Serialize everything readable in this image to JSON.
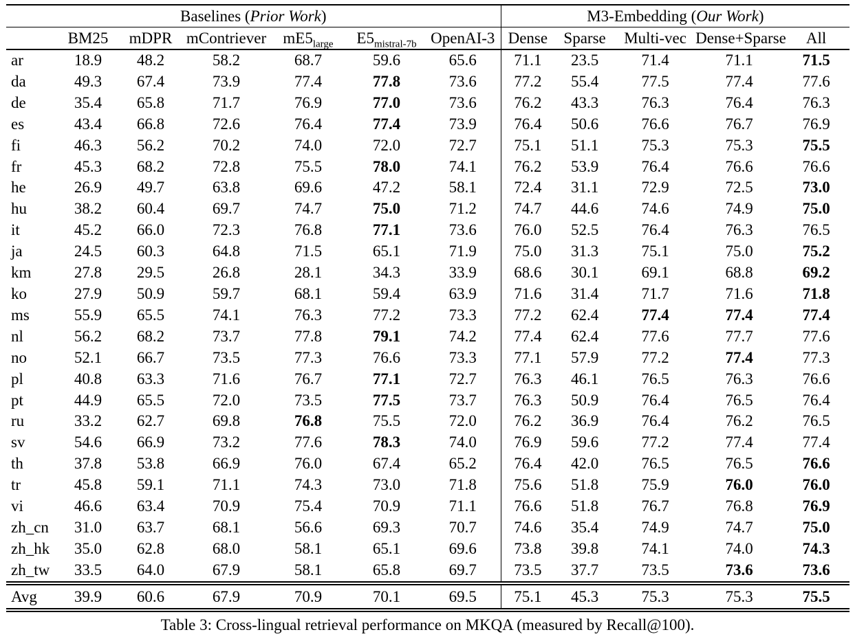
{
  "table": {
    "groups": [
      {
        "prefix": "Baselines (",
        "italic": "Prior Work",
        "suffix": ")"
      },
      {
        "prefix": "M3-Embedding (",
        "italic": "Our Work",
        "suffix": ")"
      }
    ],
    "baseline_columns": [
      {
        "base": "BM25"
      },
      {
        "base": "mDPR"
      },
      {
        "base": "mContriever"
      },
      {
        "base": "mE5",
        "sub": "large"
      },
      {
        "base": "E5",
        "sub": "mistral-7b"
      },
      {
        "base": "OpenAI-3"
      }
    ],
    "m3_columns": [
      {
        "base": "Dense"
      },
      {
        "base": "Sparse"
      },
      {
        "base": "Multi-vec"
      },
      {
        "base": "Dense+Sparse"
      },
      {
        "base": "All"
      }
    ],
    "rows": [
      {
        "lang": "ar",
        "baseline": [
          "18.9",
          "48.2",
          "58.2",
          "68.7",
          "59.6",
          "65.6"
        ],
        "baseline_bold": [],
        "m3": [
          "71.1",
          "23.5",
          "71.4",
          "71.1",
          "71.5"
        ],
        "m3_bold": [
          4
        ]
      },
      {
        "lang": "da",
        "baseline": [
          "49.3",
          "67.4",
          "73.9",
          "77.4",
          "77.8",
          "73.6"
        ],
        "baseline_bold": [
          4
        ],
        "m3": [
          "77.2",
          "55.4",
          "77.5",
          "77.4",
          "77.6"
        ],
        "m3_bold": []
      },
      {
        "lang": "de",
        "baseline": [
          "35.4",
          "65.8",
          "71.7",
          "76.9",
          "77.0",
          "73.6"
        ],
        "baseline_bold": [
          4
        ],
        "m3": [
          "76.2",
          "43.3",
          "76.3",
          "76.4",
          "76.3"
        ],
        "m3_bold": []
      },
      {
        "lang": "es",
        "baseline": [
          "43.4",
          "66.8",
          "72.6",
          "76.4",
          "77.4",
          "73.9"
        ],
        "baseline_bold": [
          4
        ],
        "m3": [
          "76.4",
          "50.6",
          "76.6",
          "76.7",
          "76.9"
        ],
        "m3_bold": []
      },
      {
        "lang": "fi",
        "baseline": [
          "46.3",
          "56.2",
          "70.2",
          "74.0",
          "72.0",
          "72.7"
        ],
        "baseline_bold": [],
        "m3": [
          "75.1",
          "51.1",
          "75.3",
          "75.3",
          "75.5"
        ],
        "m3_bold": [
          4
        ]
      },
      {
        "lang": "fr",
        "baseline": [
          "45.3",
          "68.2",
          "72.8",
          "75.5",
          "78.0",
          "74.1"
        ],
        "baseline_bold": [
          4
        ],
        "m3": [
          "76.2",
          "53.9",
          "76.4",
          "76.6",
          "76.6"
        ],
        "m3_bold": []
      },
      {
        "lang": "he",
        "baseline": [
          "26.9",
          "49.7",
          "63.8",
          "69.6",
          "47.2",
          "58.1"
        ],
        "baseline_bold": [],
        "m3": [
          "72.4",
          "31.1",
          "72.9",
          "72.5",
          "73.0"
        ],
        "m3_bold": [
          4
        ]
      },
      {
        "lang": "hu",
        "baseline": [
          "38.2",
          "60.4",
          "69.7",
          "74.7",
          "75.0",
          "71.2"
        ],
        "baseline_bold": [
          4
        ],
        "m3": [
          "74.7",
          "44.6",
          "74.6",
          "74.9",
          "75.0"
        ],
        "m3_bold": [
          4
        ]
      },
      {
        "lang": "it",
        "baseline": [
          "45.2",
          "66.0",
          "72.3",
          "76.8",
          "77.1",
          "73.6"
        ],
        "baseline_bold": [
          4
        ],
        "m3": [
          "76.0",
          "52.5",
          "76.4",
          "76.3",
          "76.5"
        ],
        "m3_bold": []
      },
      {
        "lang": "ja",
        "baseline": [
          "24.5",
          "60.3",
          "64.8",
          "71.5",
          "65.1",
          "71.9"
        ],
        "baseline_bold": [],
        "m3": [
          "75.0",
          "31.3",
          "75.1",
          "75.0",
          "75.2"
        ],
        "m3_bold": [
          4
        ]
      },
      {
        "lang": "km",
        "baseline": [
          "27.8",
          "29.5",
          "26.8",
          "28.1",
          "34.3",
          "33.9"
        ],
        "baseline_bold": [],
        "m3": [
          "68.6",
          "30.1",
          "69.1",
          "68.8",
          "69.2"
        ],
        "m3_bold": [
          4
        ]
      },
      {
        "lang": "ko",
        "baseline": [
          "27.9",
          "50.9",
          "59.7",
          "68.1",
          "59.4",
          "63.9"
        ],
        "baseline_bold": [],
        "m3": [
          "71.6",
          "31.4",
          "71.7",
          "71.6",
          "71.8"
        ],
        "m3_bold": [
          4
        ]
      },
      {
        "lang": "ms",
        "baseline": [
          "55.9",
          "65.5",
          "74.1",
          "76.3",
          "77.2",
          "73.3"
        ],
        "baseline_bold": [],
        "m3": [
          "77.2",
          "62.4",
          "77.4",
          "77.4",
          "77.4"
        ],
        "m3_bold": [
          2,
          3,
          4
        ]
      },
      {
        "lang": "nl",
        "baseline": [
          "56.2",
          "68.2",
          "73.7",
          "77.8",
          "79.1",
          "74.2"
        ],
        "baseline_bold": [
          4
        ],
        "m3": [
          "77.4",
          "62.4",
          "77.6",
          "77.7",
          "77.6"
        ],
        "m3_bold": []
      },
      {
        "lang": "no",
        "baseline": [
          "52.1",
          "66.7",
          "73.5",
          "77.3",
          "76.6",
          "73.3"
        ],
        "baseline_bold": [],
        "m3": [
          "77.1",
          "57.9",
          "77.2",
          "77.4",
          "77.3"
        ],
        "m3_bold": [
          3
        ]
      },
      {
        "lang": "pl",
        "baseline": [
          "40.8",
          "63.3",
          "71.6",
          "76.7",
          "77.1",
          "72.7"
        ],
        "baseline_bold": [
          4
        ],
        "m3": [
          "76.3",
          "46.1",
          "76.5",
          "76.3",
          "76.6"
        ],
        "m3_bold": []
      },
      {
        "lang": "pt",
        "baseline": [
          "44.9",
          "65.5",
          "72.0",
          "73.5",
          "77.5",
          "73.7"
        ],
        "baseline_bold": [
          4
        ],
        "m3": [
          "76.3",
          "50.9",
          "76.4",
          "76.5",
          "76.4"
        ],
        "m3_bold": []
      },
      {
        "lang": "ru",
        "baseline": [
          "33.2",
          "62.7",
          "69.8",
          "76.8",
          "75.5",
          "72.0"
        ],
        "baseline_bold": [
          3
        ],
        "m3": [
          "76.2",
          "36.9",
          "76.4",
          "76.2",
          "76.5"
        ],
        "m3_bold": []
      },
      {
        "lang": "sv",
        "baseline": [
          "54.6",
          "66.9",
          "73.2",
          "77.6",
          "78.3",
          "74.0"
        ],
        "baseline_bold": [
          4
        ],
        "m3": [
          "76.9",
          "59.6",
          "77.2",
          "77.4",
          "77.4"
        ],
        "m3_bold": []
      },
      {
        "lang": "th",
        "baseline": [
          "37.8",
          "53.8",
          "66.9",
          "76.0",
          "67.4",
          "65.2"
        ],
        "baseline_bold": [],
        "m3": [
          "76.4",
          "42.0",
          "76.5",
          "76.5",
          "76.6"
        ],
        "m3_bold": [
          4
        ]
      },
      {
        "lang": "tr",
        "baseline": [
          "45.8",
          "59.1",
          "71.1",
          "74.3",
          "73.0",
          "71.8"
        ],
        "baseline_bold": [],
        "m3": [
          "75.6",
          "51.8",
          "75.9",
          "76.0",
          "76.0"
        ],
        "m3_bold": [
          3,
          4
        ]
      },
      {
        "lang": "vi",
        "baseline": [
          "46.6",
          "63.4",
          "70.9",
          "75.4",
          "70.9",
          "71.1"
        ],
        "baseline_bold": [],
        "m3": [
          "76.6",
          "51.8",
          "76.7",
          "76.8",
          "76.9"
        ],
        "m3_bold": [
          4
        ]
      },
      {
        "lang": "zh_cn",
        "baseline": [
          "31.0",
          "63.7",
          "68.1",
          "56.6",
          "69.3",
          "70.7"
        ],
        "baseline_bold": [],
        "m3": [
          "74.6",
          "35.4",
          "74.9",
          "74.7",
          "75.0"
        ],
        "m3_bold": [
          4
        ]
      },
      {
        "lang": "zh_hk",
        "baseline": [
          "35.0",
          "62.8",
          "68.0",
          "58.1",
          "65.1",
          "69.6"
        ],
        "baseline_bold": [],
        "m3": [
          "73.8",
          "39.8",
          "74.1",
          "74.0",
          "74.3"
        ],
        "m3_bold": [
          4
        ]
      },
      {
        "lang": "zh_tw",
        "baseline": [
          "33.5",
          "64.0",
          "67.9",
          "58.1",
          "65.8",
          "69.7"
        ],
        "baseline_bold": [],
        "m3": [
          "73.5",
          "37.7",
          "73.5",
          "73.6",
          "73.6"
        ],
        "m3_bold": [
          3,
          4
        ]
      }
    ],
    "avg_row": {
      "lang": "Avg",
      "baseline": [
        "39.9",
        "60.6",
        "67.9",
        "70.9",
        "70.1",
        "69.5"
      ],
      "baseline_bold": [],
      "m3": [
        "75.1",
        "45.3",
        "75.3",
        "75.3",
        "75.5"
      ],
      "m3_bold": [
        4
      ]
    }
  },
  "caption": "Table 3: Cross-lingual retrieval performance on MKQA (measured by Recall@100)."
}
